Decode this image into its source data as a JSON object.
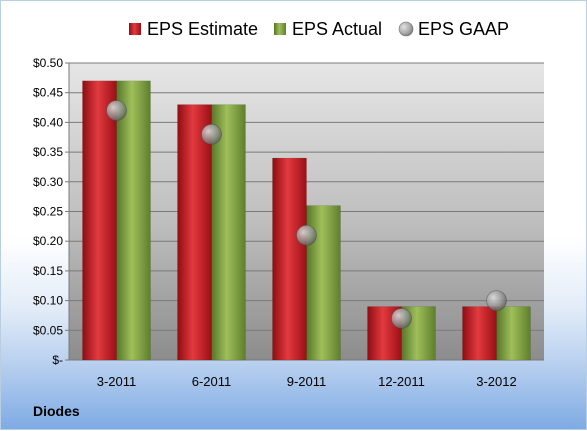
{
  "company": "Diodes",
  "colors": {
    "estimate": "#c8121a",
    "actual": "#7fa13a",
    "gaap": "#8a8a8a"
  },
  "chart_data": {
    "type": "bar",
    "categories": [
      "3-2011",
      "6-2011",
      "9-2011",
      "12-2011",
      "3-2012"
    ],
    "series": [
      {
        "name": "EPS Estimate",
        "kind": "bar",
        "values": [
          0.47,
          0.43,
          0.34,
          0.09,
          0.09
        ]
      },
      {
        "name": "EPS Actual",
        "kind": "bar",
        "values": [
          0.47,
          0.43,
          0.26,
          0.09,
          0.09
        ]
      },
      {
        "name": "EPS GAAP",
        "kind": "marker",
        "values": [
          0.42,
          0.38,
          0.21,
          0.07,
          0.1
        ]
      }
    ],
    "y_ticks": [
      "$-",
      "$0.05",
      "$0.10",
      "$0.15",
      "$0.20",
      "$0.25",
      "$0.30",
      "$0.35",
      "$0.40",
      "$0.45",
      "$0.50"
    ],
    "ylim": [
      0,
      0.5
    ],
    "grid": true,
    "legend_position": "top"
  }
}
